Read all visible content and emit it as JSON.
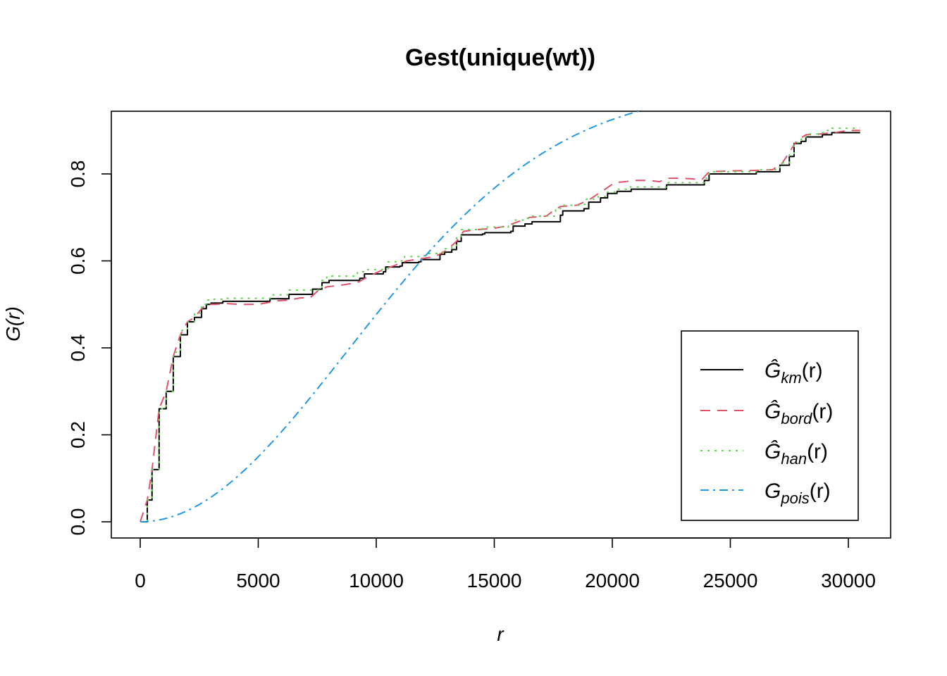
{
  "chart_data": {
    "type": "line",
    "title": "Gest(unique(wt))",
    "xlabel": "r",
    "ylabel": "G(r)",
    "xlim": [
      0,
      30500
    ],
    "ylim": [
      0,
      0.9
    ],
    "x_ticks": [
      0,
      5000,
      10000,
      15000,
      20000,
      25000,
      30000
    ],
    "y_ticks": [
      0.0,
      0.2,
      0.4,
      0.6,
      0.8
    ],
    "x_tick_labels": [
      "0",
      "5000",
      "10000",
      "15000",
      "20000",
      "25000",
      "30000"
    ],
    "y_tick_labels": [
      "0.0",
      "0.2",
      "0.4",
      "0.6",
      "0.8"
    ],
    "legend": {
      "position": "bottom-right",
      "entries": [
        {
          "series": "km",
          "text_main": "Ĝ",
          "text_sub": "km",
          "text_tail": "(r)"
        },
        {
          "series": "bord",
          "text_main": "Ĝ",
          "text_sub": "bord",
          "text_tail": "(r)"
        },
        {
          "series": "han",
          "text_main": "Ĝ",
          "text_sub": "han",
          "text_tail": "(r)"
        },
        {
          "series": "pois",
          "text_main": "G",
          "text_sub": "pois",
          "text_tail": "(r)"
        }
      ]
    },
    "series": [
      {
        "key": "km",
        "color": "#000000",
        "dash": "",
        "step": true,
        "points": [
          [
            0,
            0
          ],
          [
            300,
            0.05
          ],
          [
            500,
            0.12
          ],
          [
            800,
            0.26
          ],
          [
            1100,
            0.3
          ],
          [
            1400,
            0.38
          ],
          [
            1700,
            0.43
          ],
          [
            2000,
            0.46
          ],
          [
            2300,
            0.47
          ],
          [
            2600,
            0.49
          ],
          [
            2800,
            0.5
          ],
          [
            3000,
            0.503
          ],
          [
            3500,
            0.507
          ],
          [
            5400,
            0.507
          ],
          [
            5500,
            0.513
          ],
          [
            6200,
            0.513
          ],
          [
            6300,
            0.523
          ],
          [
            7200,
            0.523
          ],
          [
            7300,
            0.535
          ],
          [
            7600,
            0.535
          ],
          [
            7700,
            0.55
          ],
          [
            8000,
            0.555
          ],
          [
            9000,
            0.555
          ],
          [
            9300,
            0.56
          ],
          [
            9500,
            0.57
          ],
          [
            10300,
            0.575
          ],
          [
            10400,
            0.586
          ],
          [
            11000,
            0.588
          ],
          [
            11100,
            0.596
          ],
          [
            11800,
            0.598
          ],
          [
            11900,
            0.603
          ],
          [
            12500,
            0.603
          ],
          [
            12700,
            0.615
          ],
          [
            12900,
            0.62
          ],
          [
            13200,
            0.626
          ],
          [
            13400,
            0.645
          ],
          [
            13600,
            0.66
          ],
          [
            14500,
            0.662
          ],
          [
            14600,
            0.665
          ],
          [
            15700,
            0.668
          ],
          [
            15800,
            0.68
          ],
          [
            16300,
            0.685
          ],
          [
            16600,
            0.69
          ],
          [
            17600,
            0.69
          ],
          [
            17800,
            0.705
          ],
          [
            17900,
            0.715
          ],
          [
            18800,
            0.72
          ],
          [
            19000,
            0.735
          ],
          [
            19500,
            0.745
          ],
          [
            19800,
            0.755
          ],
          [
            20200,
            0.76
          ],
          [
            20800,
            0.765
          ],
          [
            22200,
            0.765
          ],
          [
            22300,
            0.775
          ],
          [
            23800,
            0.775
          ],
          [
            23900,
            0.785
          ],
          [
            24100,
            0.8
          ],
          [
            26000,
            0.8
          ],
          [
            26100,
            0.805
          ],
          [
            26900,
            0.805
          ],
          [
            27100,
            0.82
          ],
          [
            27500,
            0.84
          ],
          [
            27700,
            0.87
          ],
          [
            28000,
            0.875
          ],
          [
            28200,
            0.885
          ],
          [
            28800,
            0.885
          ],
          [
            28900,
            0.89
          ],
          [
            29300,
            0.895
          ],
          [
            30500,
            0.895
          ]
        ]
      },
      {
        "key": "bord",
        "color": "#DF536B",
        "dash": "14,10",
        "step": false,
        "points": [
          [
            0,
            0
          ],
          [
            300,
            0.05
          ],
          [
            500,
            0.12
          ],
          [
            800,
            0.26
          ],
          [
            1100,
            0.3
          ],
          [
            1400,
            0.38
          ],
          [
            1700,
            0.43
          ],
          [
            2000,
            0.46
          ],
          [
            2300,
            0.47
          ],
          [
            2600,
            0.49
          ],
          [
            2800,
            0.5
          ],
          [
            3200,
            0.5
          ],
          [
            3600,
            0.502
          ],
          [
            4200,
            0.5
          ],
          [
            5000,
            0.5
          ],
          [
            5400,
            0.504
          ],
          [
            5800,
            0.508
          ],
          [
            6300,
            0.51
          ],
          [
            6800,
            0.515
          ],
          [
            7200,
            0.515
          ],
          [
            7500,
            0.53
          ],
          [
            7900,
            0.54
          ],
          [
            8600,
            0.545
          ],
          [
            9200,
            0.55
          ],
          [
            9700,
            0.565
          ],
          [
            10300,
            0.58
          ],
          [
            10800,
            0.59
          ],
          [
            11300,
            0.6
          ],
          [
            11900,
            0.605
          ],
          [
            12500,
            0.61
          ],
          [
            13000,
            0.625
          ],
          [
            13400,
            0.645
          ],
          [
            13700,
            0.668
          ],
          [
            14300,
            0.672
          ],
          [
            15000,
            0.675
          ],
          [
            15500,
            0.68
          ],
          [
            16000,
            0.69
          ],
          [
            16500,
            0.7
          ],
          [
            17200,
            0.703
          ],
          [
            17500,
            0.715
          ],
          [
            17800,
            0.725
          ],
          [
            18500,
            0.728
          ],
          [
            19000,
            0.74
          ],
          [
            19700,
            0.765
          ],
          [
            20100,
            0.78
          ],
          [
            20500,
            0.782
          ],
          [
            21000,
            0.785
          ],
          [
            21600,
            0.785
          ],
          [
            22000,
            0.782
          ],
          [
            22300,
            0.79
          ],
          [
            23000,
            0.79
          ],
          [
            23800,
            0.787
          ],
          [
            24100,
            0.805
          ],
          [
            25000,
            0.807
          ],
          [
            26000,
            0.808
          ],
          [
            26800,
            0.81
          ],
          [
            27200,
            0.825
          ],
          [
            27500,
            0.85
          ],
          [
            27800,
            0.875
          ],
          [
            28200,
            0.89
          ],
          [
            28800,
            0.892
          ],
          [
            29400,
            0.895
          ],
          [
            30000,
            0.9
          ],
          [
            30500,
            0.9
          ]
        ]
      },
      {
        "key": "han",
        "color": "#61D04F",
        "dash": "3,7",
        "step": true,
        "points": [
          [
            0,
            0
          ],
          [
            300,
            0.05
          ],
          [
            500,
            0.12
          ],
          [
            800,
            0.26
          ],
          [
            1100,
            0.3
          ],
          [
            1400,
            0.39
          ],
          [
            1700,
            0.44
          ],
          [
            2000,
            0.46
          ],
          [
            2300,
            0.48
          ],
          [
            2600,
            0.5
          ],
          [
            2800,
            0.51
          ],
          [
            3000,
            0.512
          ],
          [
            3500,
            0.514
          ],
          [
            5500,
            0.514
          ],
          [
            5600,
            0.522
          ],
          [
            6200,
            0.522
          ],
          [
            6300,
            0.533
          ],
          [
            7500,
            0.533
          ],
          [
            7700,
            0.555
          ],
          [
            7900,
            0.565
          ],
          [
            9000,
            0.565
          ],
          [
            9200,
            0.575
          ],
          [
            9500,
            0.58
          ],
          [
            10400,
            0.582
          ],
          [
            10500,
            0.598
          ],
          [
            11000,
            0.6
          ],
          [
            11200,
            0.61
          ],
          [
            12000,
            0.612
          ],
          [
            12200,
            0.617
          ],
          [
            12600,
            0.617
          ],
          [
            12800,
            0.628
          ],
          [
            13200,
            0.635
          ],
          [
            13400,
            0.655
          ],
          [
            13600,
            0.672
          ],
          [
            14500,
            0.675
          ],
          [
            14700,
            0.678
          ],
          [
            15600,
            0.68
          ],
          [
            15800,
            0.694
          ],
          [
            16300,
            0.698
          ],
          [
            16500,
            0.703
          ],
          [
            17400,
            0.703
          ],
          [
            17600,
            0.718
          ],
          [
            17800,
            0.728
          ],
          [
            18700,
            0.73
          ],
          [
            18900,
            0.742
          ],
          [
            19400,
            0.748
          ],
          [
            19700,
            0.758
          ],
          [
            20100,
            0.765
          ],
          [
            20700,
            0.77
          ],
          [
            22100,
            0.77
          ],
          [
            22300,
            0.78
          ],
          [
            23700,
            0.78
          ],
          [
            23900,
            0.79
          ],
          [
            24100,
            0.805
          ],
          [
            25900,
            0.805
          ],
          [
            26100,
            0.81
          ],
          [
            26900,
            0.81
          ],
          [
            27100,
            0.825
          ],
          [
            27500,
            0.845
          ],
          [
            27700,
            0.872
          ],
          [
            28000,
            0.88
          ],
          [
            28200,
            0.892
          ],
          [
            28800,
            0.895
          ],
          [
            29000,
            0.9
          ],
          [
            29300,
            0.905
          ],
          [
            30500,
            0.905
          ]
        ]
      },
      {
        "key": "pois",
        "color": "#2297E6",
        "dash": "12,6,3,6",
        "step": false,
        "lambda": 2.062e-09,
        "points": []
      }
    ]
  }
}
